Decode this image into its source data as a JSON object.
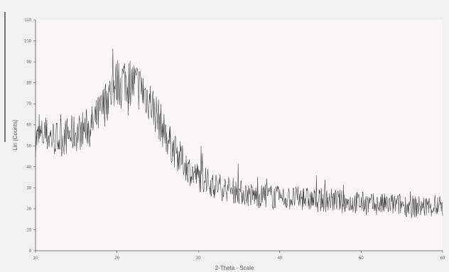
{
  "chart_data": {
    "type": "line",
    "title": "",
    "xlabel": "2-Theta - Scale",
    "ylabel": "Lin (Counts)",
    "xlim": [
      10,
      60
    ],
    "ylim": [
      0,
      110
    ],
    "x_ticks": [
      "10",
      "20",
      "30",
      "40",
      "50",
      "60"
    ],
    "y_ticks": [
      "0",
      "10",
      "20",
      "30",
      "40",
      "50",
      "60",
      "70",
      "80",
      "90",
      "100",
      "110"
    ],
    "grid": false,
    "series": [
      {
        "color": "#3a3a3a",
        "x": [
          10,
          11,
          12,
          13,
          14,
          15,
          16,
          17,
          18,
          19,
          20,
          21,
          22,
          23,
          24,
          25,
          26,
          27,
          28,
          29,
          30,
          31,
          32,
          33,
          34,
          35,
          36,
          37,
          38,
          39,
          40,
          41,
          42,
          43,
          44,
          45,
          46,
          47,
          48,
          49,
          50,
          51,
          52,
          53,
          54,
          55,
          56,
          57,
          58,
          59,
          60
        ],
        "y": [
          53,
          55,
          54,
          53,
          55,
          56,
          58,
          60,
          66,
          74,
          80,
          82,
          80,
          77,
          72,
          64,
          55,
          48,
          43,
          38,
          35,
          33,
          31,
          30,
          29,
          28,
          27,
          26,
          26,
          26,
          25,
          25,
          25,
          25,
          24,
          24,
          24,
          24,
          23,
          23,
          23,
          22,
          22,
          22,
          22,
          22,
          21,
          21,
          21,
          21,
          21
        ]
      }
    ]
  }
}
